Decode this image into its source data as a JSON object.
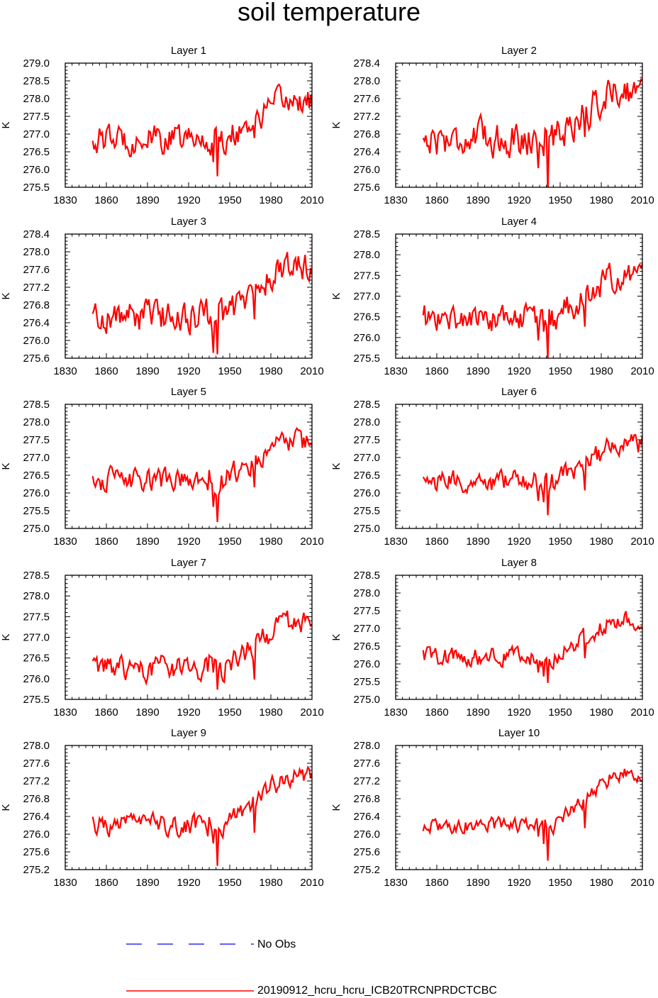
{
  "title": "soil temperature",
  "colors": {
    "series": "#ff0000",
    "obs": "#0000ff",
    "axis": "#000000"
  },
  "legend": {
    "obs_label": "No Obs",
    "model_label": "20190912_hcru_hcru_ICB20TRCNPRDCTCBC"
  },
  "chart_data": [
    {
      "type": "line",
      "title": "Layer 1",
      "ylabel": "K",
      "xlim": [
        1830,
        2010
      ],
      "xticks": [
        1830,
        1860,
        1890,
        1920,
        1950,
        1980,
        2010
      ],
      "ylim": [
        275.5,
        279.0
      ],
      "yticks": [
        "275.5",
        "276.0",
        "276.5",
        "277.0",
        "277.5",
        "278.0",
        "278.5",
        "279.0"
      ],
      "base": 276.85,
      "amp": 0.4,
      "trend_start": 1945,
      "trend_rise": 1.1,
      "dip": 1.0,
      "series": [
        {
          "name": "20190912_hcru_hcru_ICB20TRCNPRDCTCBC",
          "x_start": 1850,
          "x_end": 2010
        }
      ]
    },
    {
      "type": "line",
      "title": "Layer 2",
      "ylabel": "K",
      "xlim": [
        1830,
        2010
      ],
      "xticks": [
        1830,
        1860,
        1890,
        1920,
        1950,
        1980,
        2010
      ],
      "ylim": [
        275.6,
        278.4
      ],
      "yticks": [
        "275.6",
        "276.0",
        "276.4",
        "276.8",
        "277.2",
        "277.6",
        "278.0",
        "278.4"
      ],
      "base": 276.7,
      "amp": 0.38,
      "trend_start": 1945,
      "trend_rise": 1.1,
      "dip": 1.0,
      "series": [
        {
          "name": "20190912_hcru_hcru_ICB20TRCNPRDCTCBC",
          "x_start": 1850,
          "x_end": 2010
        }
      ]
    },
    {
      "type": "line",
      "title": "Layer 3",
      "ylabel": "K",
      "xlim": [
        1830,
        2010
      ],
      "xticks": [
        1830,
        1860,
        1890,
        1920,
        1950,
        1980,
        2010
      ],
      "ylim": [
        275.6,
        278.4
      ],
      "yticks": [
        "275.6",
        "276.0",
        "276.4",
        "276.8",
        "277.2",
        "277.6",
        "278.0",
        "278.4"
      ],
      "base": 276.55,
      "amp": 0.36,
      "trend_start": 1945,
      "trend_rise": 1.1,
      "dip": 1.0,
      "series": [
        {
          "name": "20190912_hcru_hcru_ICB20TRCNPRDCTCBC",
          "x_start": 1850,
          "x_end": 2010
        }
      ]
    },
    {
      "type": "line",
      "title": "Layer 4",
      "ylabel": "K",
      "xlim": [
        1830,
        2010
      ],
      "xticks": [
        1830,
        1860,
        1890,
        1920,
        1950,
        1980,
        2010
      ],
      "ylim": [
        275.5,
        278.5
      ],
      "yticks": [
        "275.5",
        "276.0",
        "276.5",
        "277.0",
        "277.5",
        "278.0",
        "278.5"
      ],
      "base": 276.45,
      "amp": 0.34,
      "trend_start": 1945,
      "trend_rise": 1.05,
      "dip": 0.95,
      "series": [
        {
          "name": "20190912_hcru_hcru_ICB20TRCNPRDCTCBC",
          "x_start": 1850,
          "x_end": 2010
        }
      ]
    },
    {
      "type": "line",
      "title": "Layer 5",
      "ylabel": "K",
      "xlim": [
        1830,
        2010
      ],
      "xticks": [
        1830,
        1860,
        1890,
        1920,
        1950,
        1980,
        2010
      ],
      "ylim": [
        275.0,
        278.5
      ],
      "yticks": [
        "275.0",
        "275.5",
        "276.0",
        "276.5",
        "277.0",
        "277.5",
        "278.0",
        "278.5"
      ],
      "base": 276.35,
      "amp": 0.32,
      "trend_start": 1945,
      "trend_rise": 1.05,
      "dip": 0.9,
      "series": [
        {
          "name": "20190912_hcru_hcru_ICB20TRCNPRDCTCBC",
          "x_start": 1850,
          "x_end": 2010
        }
      ]
    },
    {
      "type": "line",
      "title": "Layer 6",
      "ylabel": "K",
      "xlim": [
        1830,
        2010
      ],
      "xticks": [
        1830,
        1860,
        1890,
        1920,
        1950,
        1980,
        2010
      ],
      "ylim": [
        275.0,
        278.5
      ],
      "yticks": [
        "275.0",
        "275.5",
        "276.0",
        "276.5",
        "277.0",
        "277.5",
        "278.0",
        "278.5"
      ],
      "base": 276.3,
      "amp": 0.3,
      "trend_start": 1945,
      "trend_rise": 1.05,
      "dip": 0.85,
      "series": [
        {
          "name": "20190912_hcru_hcru_ICB20TRCNPRDCTCBC",
          "x_start": 1850,
          "x_end": 2010
        }
      ]
    },
    {
      "type": "line",
      "title": "Layer 7",
      "ylabel": "K",
      "xlim": [
        1830,
        2010
      ],
      "xticks": [
        1830,
        1860,
        1890,
        1920,
        1950,
        1980,
        2010
      ],
      "ylim": [
        275.5,
        278.5
      ],
      "yticks": [
        "275.5",
        "276.0",
        "276.5",
        "277.0",
        "277.5",
        "278.0",
        "278.5"
      ],
      "base": 276.25,
      "amp": 0.28,
      "trend_start": 1945,
      "trend_rise": 1.05,
      "dip": 0.8,
      "series": [
        {
          "name": "20190912_hcru_hcru_ICB20TRCNPRDCTCBC",
          "x_start": 1850,
          "x_end": 2010
        }
      ]
    },
    {
      "type": "line",
      "title": "Layer 8",
      "ylabel": "K",
      "xlim": [
        1830,
        2010
      ],
      "xticks": [
        1830,
        1860,
        1890,
        1920,
        1950,
        1980,
        2010
      ],
      "ylim": [
        275.0,
        278.5
      ],
      "yticks": [
        "275.0",
        "275.5",
        "276.0",
        "276.5",
        "277.0",
        "277.5",
        "278.0",
        "278.5"
      ],
      "base": 276.2,
      "amp": 0.25,
      "trend_start": 1945,
      "trend_rise": 1.05,
      "dip": 0.8,
      "series": [
        {
          "name": "20190912_hcru_hcru_ICB20TRCNPRDCTCBC",
          "x_start": 1850,
          "x_end": 2010
        }
      ]
    },
    {
      "type": "line",
      "title": "Layer 9",
      "ylabel": "K",
      "xlim": [
        1830,
        2010
      ],
      "xticks": [
        1830,
        1860,
        1890,
        1920,
        1950,
        1980,
        2010
      ],
      "ylim": [
        275.2,
        278.0
      ],
      "yticks": [
        "275.2",
        "275.6",
        "276.0",
        "276.4",
        "276.8",
        "277.2",
        "277.6",
        "278.0"
      ],
      "base": 276.2,
      "amp": 0.22,
      "trend_start": 1945,
      "trend_rise": 1.1,
      "dip": 0.85,
      "series": [
        {
          "name": "20190912_hcru_hcru_ICB20TRCNPRDCTCBC",
          "x_start": 1850,
          "x_end": 2010
        }
      ]
    },
    {
      "type": "line",
      "title": "Layer 10",
      "ylabel": "K",
      "xlim": [
        1830,
        2010
      ],
      "xticks": [
        1830,
        1860,
        1890,
        1920,
        1950,
        1980,
        2010
      ],
      "ylim": [
        275.2,
        278.0
      ],
      "yticks": [
        "275.2",
        "275.6",
        "276.0",
        "276.4",
        "276.8",
        "277.2",
        "277.6",
        "278.0"
      ],
      "base": 276.2,
      "amp": 0.17,
      "trend_start": 1945,
      "trend_rise": 1.15,
      "dip": 0.7,
      "series": [
        {
          "name": "20190912_hcru_hcru_ICB20TRCNPRDCTCBC",
          "x_start": 1850,
          "x_end": 2010
        }
      ]
    }
  ]
}
